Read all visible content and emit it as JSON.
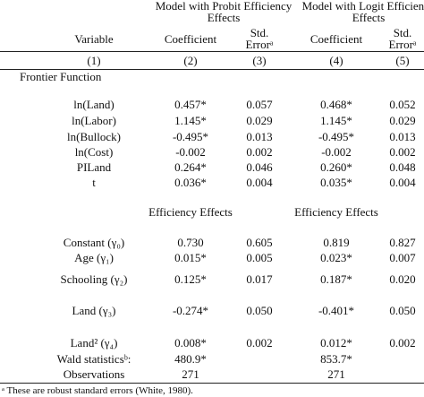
{
  "header": {
    "groups": [
      "Model with Probit Efficiency Effects",
      "Model with Logit Efficiency Effects"
    ],
    "columns": [
      "Variable",
      "Coefficient",
      "Std. Errorᵃ",
      "Coefficient",
      "Std. Errorᵃ"
    ],
    "numbers": [
      "(1)",
      "(2)",
      "(3)",
      "(4)",
      "(5)"
    ]
  },
  "frontier": {
    "title": "Frontier Function",
    "rows": [
      [
        "ln(Land)",
        "0.457*",
        "0.057",
        "0.468*",
        "0.052"
      ],
      [
        "ln(Labor)",
        "1.145*",
        "0.029",
        "1.145*",
        "0.029"
      ],
      [
        "ln(Bullock)",
        "-0.495*",
        "0.013",
        "-0.495*",
        "0.013"
      ],
      [
        "ln(Cost)",
        "-0.002",
        "0.002",
        "-0.002",
        "0.002"
      ],
      [
        "PILand",
        "0.264*",
        "0.046",
        "0.260*",
        "0.048"
      ],
      [
        "t",
        "0.036*",
        "0.004",
        "0.035*",
        "0.004"
      ]
    ]
  },
  "efficiency": {
    "titles": [
      "Efficiency Effects",
      "Efficiency Effects"
    ],
    "rows": [
      [
        "Constant (γ₀)",
        "0.730",
        "0.605",
        "0.819",
        "0.827"
      ],
      [
        "Age (γ₁)",
        "0.015*",
        "0.005",
        "0.023*",
        "0.007"
      ],
      [
        "Schooling (γ₂)",
        "0.125*",
        "0.017",
        "0.187*",
        "0.020"
      ],
      [
        "Land (γ₃)",
        "-0.274*",
        "0.050",
        "-0.401*",
        "0.050"
      ],
      [
        "Land² (γ₄)",
        "0.008*",
        "0.002",
        "0.012*",
        "0.002"
      ],
      [
        "Wald statisticsᵇ:",
        "480.9*",
        null,
        "853.7*",
        null
      ],
      [
        "Observations",
        "271",
        null,
        "271",
        null
      ]
    ]
  },
  "footnote": "ᵃ  These are robust standard errors (White, 1980)."
}
